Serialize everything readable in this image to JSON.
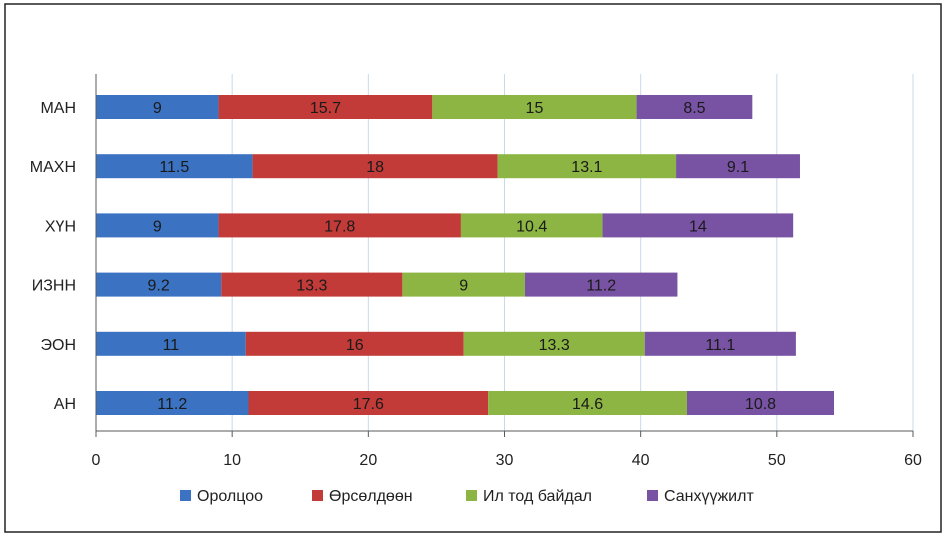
{
  "chart_data": {
    "type": "bar",
    "orientation": "horizontal",
    "stacked": true,
    "title": "",
    "xlabel": "",
    "ylabel": "",
    "xlim": [
      0,
      60
    ],
    "x_ticks": [
      0,
      10,
      20,
      30,
      40,
      50,
      60
    ],
    "grid": true,
    "legend_position": "bottom",
    "categories": [
      "МАН",
      "МАХН",
      "ХҮН",
      "ИЗНН",
      "ЭОН",
      "АН"
    ],
    "series": [
      {
        "name": "Оролцоо",
        "color": "#3b72c1",
        "values": [
          9,
          11.5,
          9,
          9.2,
          11,
          11.2
        ]
      },
      {
        "name": "Өрсөлдөөн",
        "color": "#c23b38",
        "values": [
          15.7,
          18,
          17.8,
          13.3,
          16,
          17.6
        ]
      },
      {
        "name": "Ил тод байдал",
        "color": "#8db543",
        "values": [
          15,
          13.1,
          10.4,
          9,
          13.3,
          14.6
        ]
      },
      {
        "name": "Санхүүжилт",
        "color": "#7853a3",
        "values": [
          8.5,
          9.1,
          14,
          11.2,
          11.1,
          10.8
        ]
      }
    ]
  }
}
